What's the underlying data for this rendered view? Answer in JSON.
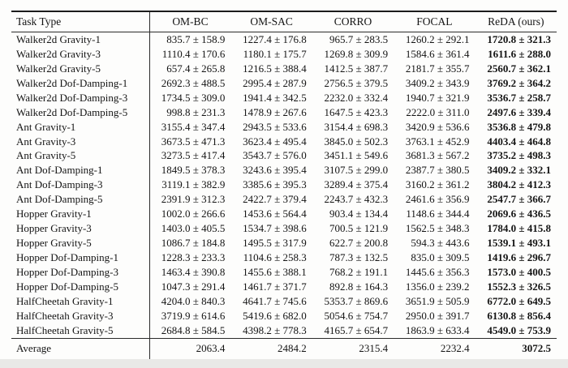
{
  "table": {
    "columns": [
      "Task Type",
      "OM-BC",
      "OM-SAC",
      "CORRO",
      "FOCAL",
      "ReDA (ours)"
    ],
    "rows": [
      {
        "task": "Walker2d Gravity-1",
        "values": [
          "835.7 ± 158.9",
          "1227.4 ± 176.8",
          "965.7 ± 283.5",
          "1260.2 ± 292.1",
          "1720.8 ± 321.3"
        ]
      },
      {
        "task": "Walker2d Gravity-3",
        "values": [
          "1110.4 ± 170.6",
          "1180.1 ± 175.7",
          "1269.8 ± 309.9",
          "1584.6 ± 361.4",
          "1611.6 ± 288.0"
        ]
      },
      {
        "task": "Walker2d Gravity-5",
        "values": [
          "657.4 ± 265.8",
          "1216.5 ± 388.4",
          "1412.5 ± 387.7",
          "2181.7 ± 355.7",
          "2560.7 ± 362.1"
        ]
      },
      {
        "task": "Walker2d Dof-Damping-1",
        "values": [
          "2692.3 ± 488.5",
          "2995.4 ± 287.9",
          "2756.5 ± 379.5",
          "3409.2 ± 343.9",
          "3769.2 ± 364.2"
        ]
      },
      {
        "task": "Walker2d Dof-Damping-3",
        "values": [
          "1734.5 ± 309.0",
          "1941.4 ± 342.5",
          "2232.0 ± 332.4",
          "1940.7 ± 321.9",
          "3536.7 ± 258.7"
        ]
      },
      {
        "task": "Walker2d Dof-Damping-5",
        "values": [
          "998.8 ± 231.3",
          "1478.9 ± 267.6",
          "1647.5 ± 423.3",
          "2222.0 ± 311.0",
          "2497.6 ± 339.4"
        ]
      },
      {
        "task": "Ant Gravity-1",
        "values": [
          "3155.4 ± 347.4",
          "2943.5 ± 533.6",
          "3154.4 ± 698.3",
          "3420.9 ± 536.6",
          "3536.8 ± 479.8"
        ]
      },
      {
        "task": "Ant Gravity-3",
        "values": [
          "3673.5 ± 471.3",
          "3623.4 ± 495.4",
          "3845.0 ± 502.3",
          "3763.1 ± 452.9",
          "4403.4 ± 464.8"
        ]
      },
      {
        "task": "Ant Gravity-5",
        "values": [
          "3273.5 ± 417.4",
          "3543.7 ± 576.0",
          "3451.1 ± 549.6",
          "3681.3 ± 567.2",
          "3735.2 ± 498.3"
        ]
      },
      {
        "task": "Ant Dof-Damping-1",
        "values": [
          "1849.5 ± 378.3",
          "3243.6 ± 395.4",
          "3107.5 ± 299.0",
          "2387.7 ± 380.5",
          "3409.2 ± 332.1"
        ]
      },
      {
        "task": "Ant Dof-Damping-3",
        "values": [
          "3119.1 ± 382.9",
          "3385.6 ± 395.3",
          "3289.4 ± 375.4",
          "3160.2 ± 361.2",
          "3804.2 ± 412.3"
        ]
      },
      {
        "task": "Ant Dof-Damping-5",
        "values": [
          "2391.9 ± 312.3",
          "2422.7 ± 379.4",
          "2243.7 ± 432.3",
          "2461.6 ± 356.9",
          "2547.7 ± 366.7"
        ]
      },
      {
        "task": "Hopper Gravity-1",
        "values": [
          "1002.0 ± 266.6",
          "1453.6 ± 564.4",
          "903.4 ± 134.4",
          "1148.6 ± 344.4",
          "2069.6 ± 436.5"
        ]
      },
      {
        "task": "Hopper Gravity-3",
        "values": [
          "1403.0 ± 405.5",
          "1534.7 ± 398.6",
          "700.5 ± 121.9",
          "1562.5 ± 348.3",
          "1784.0 ± 415.8"
        ]
      },
      {
        "task": "Hopper Gravity-5",
        "values": [
          "1086.7 ± 184.8",
          "1495.5 ± 317.9",
          "622.7 ± 200.8",
          "594.3 ± 443.6",
          "1539.1 ± 493.1"
        ]
      },
      {
        "task": "Hopper Dof-Damping-1",
        "values": [
          "1228.3 ± 233.3",
          "1104.6 ± 258.3",
          "787.3 ± 132.5",
          "835.0 ± 309.5",
          "1419.6 ± 296.7"
        ]
      },
      {
        "task": "Hopper Dof-Damping-3",
        "values": [
          "1463.4 ± 390.8",
          "1455.6 ± 388.1",
          "768.2 ± 191.1",
          "1445.6 ± 356.3",
          "1573.0 ± 400.5"
        ]
      },
      {
        "task": "Hopper Dof-Damping-5",
        "values": [
          "1047.3 ± 291.4",
          "1461.7 ± 371.7",
          "892.8 ± 164.3",
          "1356.0 ± 239.2",
          "1552.3 ± 326.5"
        ]
      },
      {
        "task": "HalfCheetah Gravity-1",
        "values": [
          "4204.0 ± 840.3",
          "4641.7 ± 745.6",
          "5353.7 ± 869.6",
          "3651.9 ± 505.9",
          "6772.0 ± 649.5"
        ]
      },
      {
        "task": "HalfCheetah Gravity-3",
        "values": [
          "3719.9 ± 614.6",
          "5419.6 ± 682.0",
          "5054.6 ± 754.7",
          "2950.0 ± 391.7",
          "6130.8 ± 856.4"
        ]
      },
      {
        "task": "HalfCheetah Gravity-5",
        "values": [
          "2684.8 ± 584.5",
          "4398.2 ± 778.3",
          "4165.7 ± 654.7",
          "1863.9 ± 633.4",
          "4549.0 ± 753.9"
        ]
      }
    ],
    "footer": {
      "label": "Average",
      "values": [
        "2063.4",
        "2484.2",
        "2315.4",
        "2232.4",
        "3072.5"
      ]
    }
  },
  "colors": {
    "rule": "#1c1c1c",
    "text": "#141414",
    "page_bg": "#fdfdfc",
    "bottom_strip": "#e9e9e7"
  }
}
